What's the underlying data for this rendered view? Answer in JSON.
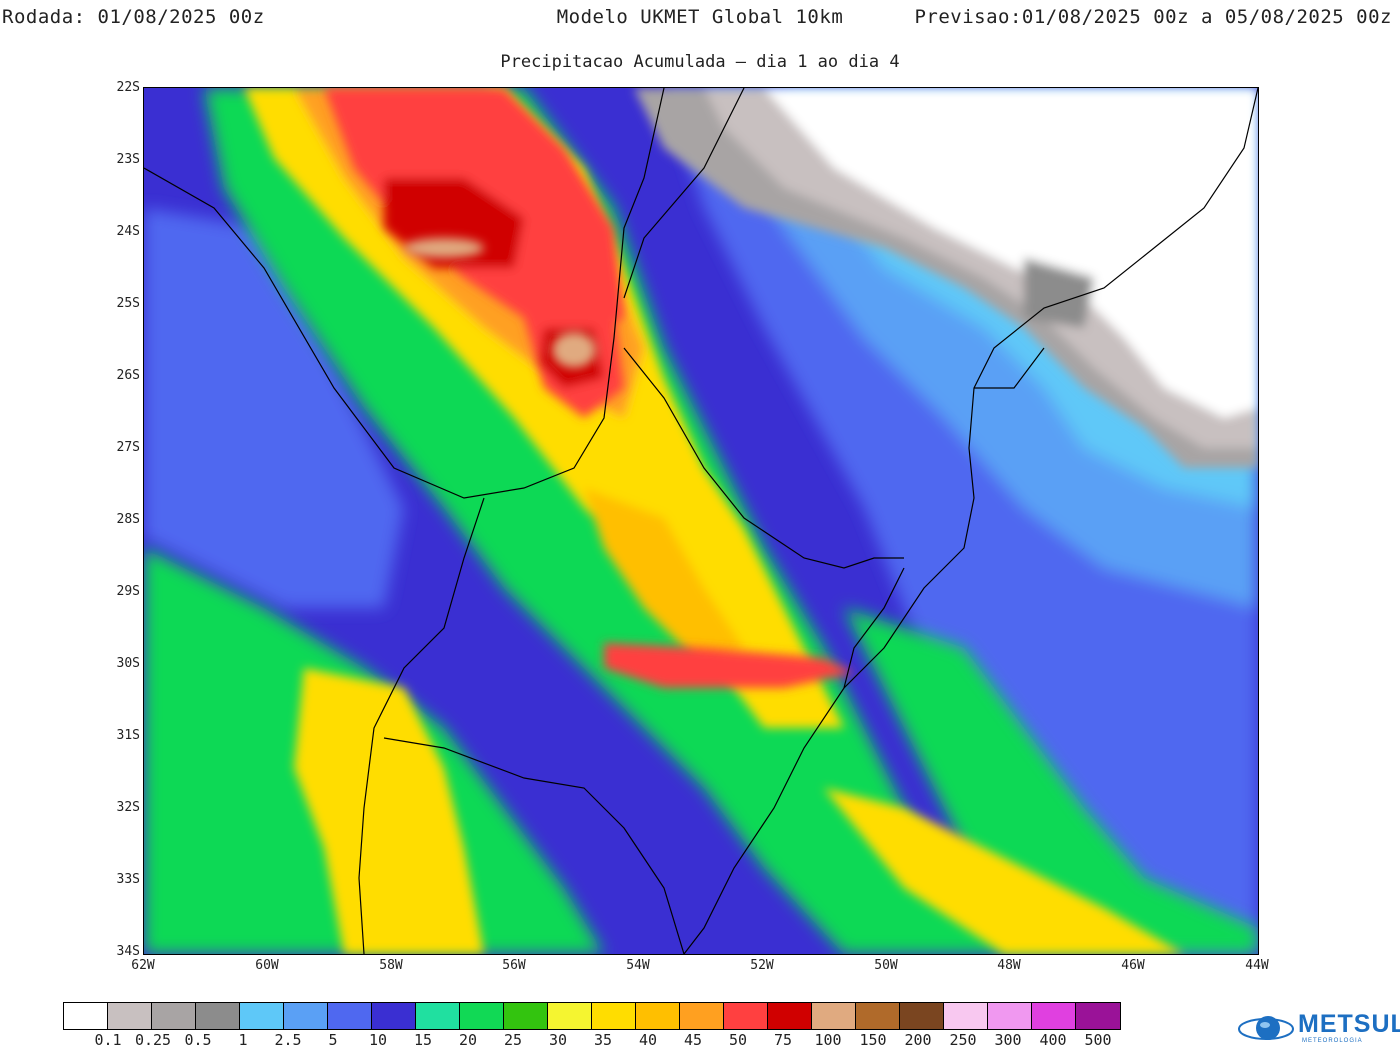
{
  "header": {
    "left": "Rodada: 01/08/2025 00z",
    "center": "Modelo UKMET Global 10km",
    "right": "Previsao:01/08/2025 00z a 05/08/2025 00z"
  },
  "subtitle": "Precipitacao Acumulada – dia 1 ao dia 4",
  "axes": {
    "lat_labels": [
      "22S",
      "23S",
      "24S",
      "25S",
      "26S",
      "27S",
      "28S",
      "29S",
      "30S",
      "31S",
      "32S",
      "33S",
      "34S"
    ],
    "lon_labels": [
      "62W",
      "60W",
      "58W",
      "56W",
      "54W",
      "52W",
      "50W",
      "48W",
      "46W",
      "44W"
    ],
    "lat_range": [
      -34,
      -22
    ],
    "lon_range": [
      -62,
      -44
    ]
  },
  "legend": {
    "labels": [
      "0.1",
      "0.25",
      "0.5",
      "1",
      "2.5",
      "5",
      "10",
      "15",
      "20",
      "25",
      "30",
      "35",
      "40",
      "45",
      "50",
      "75",
      "100",
      "150",
      "200",
      "250",
      "300",
      "400",
      "500"
    ],
    "colors": [
      "#ffffff",
      "#c8c0c0",
      "#a8a4a4",
      "#8c8c8c",
      "#5ec8f8",
      "#5aa0f5",
      "#4f68f0",
      "#3a2fd2",
      "#20e0a0",
      "#11d955",
      "#33c40f",
      "#f5f530",
      "#ffdd00",
      "#ffbf00",
      "#ffa020",
      "#ff4040",
      "#d00000",
      "#e0aa80",
      "#b06a2a",
      "#7a4520",
      "#f8c8f0",
      "#f098f0",
      "#e040e0",
      "#9a1298"
    ]
  },
  "logo": {
    "text": "METSUL",
    "sub": "METEOROLOGIA"
  }
}
